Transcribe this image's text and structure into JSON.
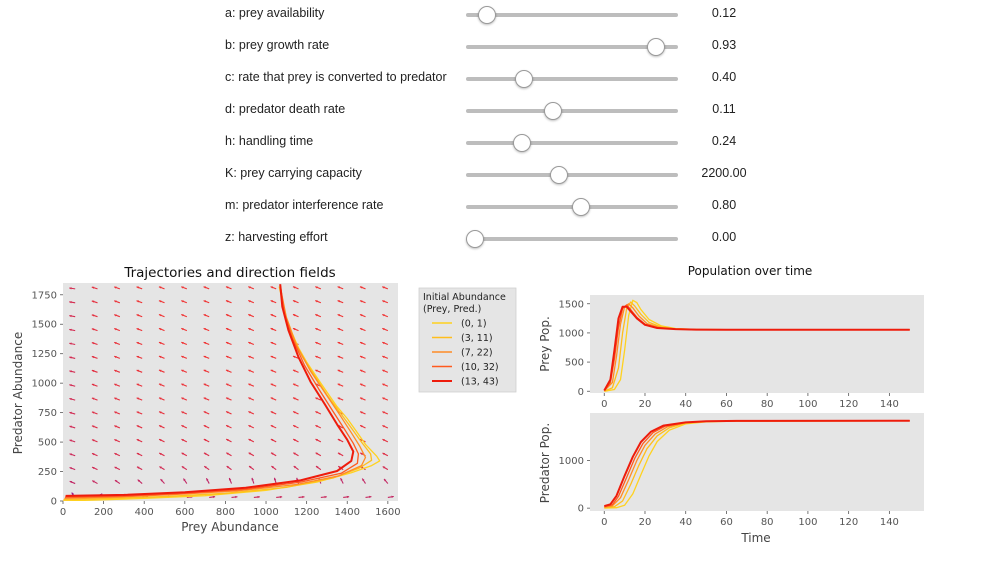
{
  "sliders": [
    {
      "label": "a: prey availability",
      "value": "0.12",
      "fraction": 0.06
    },
    {
      "label": "b: prey growth rate",
      "value": "0.93",
      "fraction": 0.925
    },
    {
      "label": "c: rate that prey is converted to predator",
      "value": "0.40",
      "fraction": 0.25
    },
    {
      "label": "d: predator death rate",
      "value": "0.11",
      "fraction": 0.4
    },
    {
      "label": "h: handling time",
      "value": "0.24",
      "fraction": 0.24
    },
    {
      "label": "K: prey carrying capacity",
      "value": "2200.00",
      "fraction": 0.43
    },
    {
      "label": "m: predator interference rate",
      "value": "0.80",
      "fraction": 0.54
    },
    {
      "label": "z: harvesting effort",
      "value": "0.00",
      "fraction": 0.0
    }
  ],
  "colors": {
    "plot_bg": "#e5e5e5",
    "slider_track": "#bdbdbd",
    "series": [
      "#ffd21f",
      "#ffbe1c",
      "#ff8c26",
      "#ff5a1e",
      "#ee1c0c"
    ]
  },
  "legend": {
    "title": "Initial Abundance\n (Prey, Pred.)",
    "entries": [
      "(0, 1)",
      "(3, 11)",
      "(7, 22)",
      "(10, 32)",
      "(13, 43)"
    ]
  },
  "chart_data": [
    {
      "type": "line",
      "title": "Trajectories and direction fields",
      "xlabel": "Prey Abundance",
      "ylabel": "Predator Abundance",
      "xlim": [
        0,
        1650
      ],
      "ylim": [
        0,
        1850
      ],
      "xticks": [
        "0",
        "200",
        "400",
        "600",
        "800",
        "1000",
        "1200",
        "1400",
        "1600"
      ],
      "yticks": [
        "0",
        "250",
        "500",
        "750",
        "1000",
        "1250",
        "1500",
        "1750"
      ],
      "grid": false,
      "legend_position": "outside-right",
      "direction_field": true,
      "series": [
        {
          "name": "(0, 1)",
          "points": [
            [
              0,
              1
            ],
            [
              150,
              8
            ],
            [
              400,
              22
            ],
            [
              700,
              45
            ],
            [
              1000,
              90
            ],
            [
              1250,
              160
            ],
            [
              1420,
              240
            ],
            [
              1520,
              300
            ],
            [
              1560,
              340
            ],
            [
              1545,
              380
            ],
            [
              1490,
              480
            ],
            [
              1450,
              580
            ],
            [
              1400,
              700
            ],
            [
              1350,
              800
            ],
            [
              1290,
              950
            ],
            [
              1250,
              1050
            ],
            [
              1200,
              1180
            ],
            [
              1160,
              1300
            ],
            [
              1130,
              1420
            ],
            [
              1100,
              1560
            ],
            [
              1080,
              1700
            ],
            [
              1065,
              1820
            ]
          ]
        },
        {
          "name": "(3, 11)",
          "points": [
            [
              3,
              11
            ],
            [
              200,
              20
            ],
            [
              500,
              38
            ],
            [
              800,
              65
            ],
            [
              1100,
              115
            ],
            [
              1330,
              195
            ],
            [
              1460,
              280
            ],
            [
              1520,
              345
            ],
            [
              1515,
              400
            ],
            [
              1470,
              500
            ],
            [
              1420,
              620
            ],
            [
              1360,
              760
            ],
            [
              1300,
              900
            ],
            [
              1240,
              1060
            ],
            [
              1180,
              1220
            ],
            [
              1130,
              1400
            ],
            [
              1090,
              1600
            ],
            [
              1068,
              1820
            ]
          ]
        },
        {
          "name": "(7, 22)",
          "points": [
            [
              7,
              22
            ],
            [
              250,
              32
            ],
            [
              550,
              55
            ],
            [
              850,
              85
            ],
            [
              1150,
              140
            ],
            [
              1360,
              215
            ],
            [
              1470,
              300
            ],
            [
              1490,
              370
            ],
            [
              1460,
              470
            ],
            [
              1420,
              580
            ],
            [
              1360,
              740
            ],
            [
              1290,
              920
            ],
            [
              1220,
              1100
            ],
            [
              1150,
              1320
            ],
            [
              1100,
              1560
            ],
            [
              1070,
              1820
            ]
          ]
        },
        {
          "name": "(10, 32)",
          "points": [
            [
              10,
              32
            ],
            [
              300,
              42
            ],
            [
              600,
              65
            ],
            [
              900,
              100
            ],
            [
              1170,
              160
            ],
            [
              1370,
              235
            ],
            [
              1450,
              320
            ],
            [
              1455,
              400
            ],
            [
              1430,
              490
            ],
            [
              1390,
              600
            ],
            [
              1330,
              760
            ],
            [
              1260,
              950
            ],
            [
              1190,
              1150
            ],
            [
              1130,
              1380
            ],
            [
              1090,
              1600
            ],
            [
              1072,
              1820
            ]
          ]
        },
        {
          "name": "(13, 43)",
          "points": [
            [
              13,
              43
            ],
            [
              300,
              52
            ],
            [
              600,
              75
            ],
            [
              900,
              112
            ],
            [
              1170,
              175
            ],
            [
              1350,
              255
            ],
            [
              1420,
              340
            ],
            [
              1430,
              420
            ],
            [
              1400,
              520
            ],
            [
              1350,
              650
            ],
            [
              1290,
              820
            ],
            [
              1220,
              1010
            ],
            [
              1160,
              1220
            ],
            [
              1110,
              1450
            ],
            [
              1080,
              1650
            ],
            [
              1070,
              1840
            ]
          ]
        }
      ]
    },
    {
      "type": "line",
      "title": "Population over time",
      "xlabel": "",
      "ylabel": "Prey Pop.",
      "xlim": [
        -7,
        157
      ],
      "ylim": [
        -30,
        1650
      ],
      "xticks": [
        "0",
        "20",
        "40",
        "60",
        "80",
        "100",
        "120",
        "140"
      ],
      "yticks": [
        "0",
        "500",
        "1000",
        "1500"
      ],
      "grid": false,
      "series": [
        {
          "name": "(0, 1)",
          "points": [
            [
              0,
              0
            ],
            [
              5,
              30
            ],
            [
              8,
              200
            ],
            [
              10,
              700
            ],
            [
              12,
              1300
            ],
            [
              14,
              1560
            ],
            [
              16,
              1520
            ],
            [
              18,
              1400
            ],
            [
              22,
              1230
            ],
            [
              28,
              1120
            ],
            [
              35,
              1075
            ],
            [
              45,
              1060
            ],
            [
              60,
              1055
            ],
            [
              150,
              1055
            ]
          ]
        },
        {
          "name": "(3, 11)",
          "points": [
            [
              0,
              3
            ],
            [
              4,
              60
            ],
            [
              7,
              400
            ],
            [
              9,
              1000
            ],
            [
              11,
              1420
            ],
            [
              13,
              1530
            ],
            [
              15,
              1460
            ],
            [
              18,
              1320
            ],
            [
              22,
              1180
            ],
            [
              28,
              1100
            ],
            [
              35,
              1070
            ],
            [
              45,
              1058
            ],
            [
              60,
              1055
            ],
            [
              150,
              1055
            ]
          ]
        },
        {
          "name": "(7, 22)",
          "points": [
            [
              0,
              7
            ],
            [
              4,
              150
            ],
            [
              6,
              600
            ],
            [
              8,
              1150
            ],
            [
              10,
              1450
            ],
            [
              12,
              1500
            ],
            [
              14,
              1430
            ],
            [
              17,
              1290
            ],
            [
              21,
              1160
            ],
            [
              27,
              1095
            ],
            [
              35,
              1068
            ],
            [
              45,
              1058
            ],
            [
              60,
              1055
            ],
            [
              150,
              1055
            ]
          ]
        },
        {
          "name": "(10, 32)",
          "points": [
            [
              0,
              10
            ],
            [
              3,
              150
            ],
            [
              5,
              550
            ],
            [
              7,
              1100
            ],
            [
              9,
              1420
            ],
            [
              11,
              1480
            ],
            [
              13,
              1400
            ],
            [
              16,
              1270
            ],
            [
              20,
              1150
            ],
            [
              26,
              1090
            ],
            [
              35,
              1066
            ],
            [
              45,
              1057
            ],
            [
              60,
              1055
            ],
            [
              150,
              1055
            ]
          ]
        },
        {
          "name": "(13, 43)",
          "points": [
            [
              0,
              13
            ],
            [
              3,
              200
            ],
            [
              5,
              700
            ],
            [
              7,
              1250
            ],
            [
              9,
              1450
            ],
            [
              11,
              1450
            ],
            [
              13,
              1370
            ],
            [
              16,
              1250
            ],
            [
              20,
              1140
            ],
            [
              26,
              1085
            ],
            [
              35,
              1065
            ],
            [
              45,
              1057
            ],
            [
              60,
              1055
            ],
            [
              150,
              1055
            ]
          ]
        }
      ]
    },
    {
      "type": "line",
      "title": "",
      "xlabel": "Time",
      "ylabel": "Predator Pop.",
      "xlim": [
        -7,
        157
      ],
      "ylim": [
        -60,
        2000
      ],
      "xticks": [
        "0",
        "20",
        "40",
        "60",
        "80",
        "100",
        "120",
        "140"
      ],
      "yticks": [
        "0",
        "1000"
      ],
      "grid": false,
      "series": [
        {
          "name": "(0, 1)",
          "points": [
            [
              0,
              1
            ],
            [
              6,
              10
            ],
            [
              10,
              60
            ],
            [
              14,
              300
            ],
            [
              18,
              700
            ],
            [
              22,
              1100
            ],
            [
              26,
              1400
            ],
            [
              32,
              1640
            ],
            [
              40,
              1770
            ],
            [
              50,
              1815
            ],
            [
              65,
              1830
            ],
            [
              150,
              1835
            ]
          ]
        },
        {
          "name": "(3, 11)",
          "points": [
            [
              0,
              11
            ],
            [
              5,
              30
            ],
            [
              9,
              150
            ],
            [
              13,
              500
            ],
            [
              17,
              900
            ],
            [
              21,
              1250
            ],
            [
              26,
              1520
            ],
            [
              32,
              1690
            ],
            [
              40,
              1790
            ],
            [
              50,
              1820
            ],
            [
              65,
              1832
            ],
            [
              150,
              1835
            ]
          ]
        },
        {
          "name": "(7, 22)",
          "points": [
            [
              0,
              22
            ],
            [
              4,
              50
            ],
            [
              8,
              220
            ],
            [
              12,
              600
            ],
            [
              16,
              1000
            ],
            [
              20,
              1320
            ],
            [
              25,
              1560
            ],
            [
              31,
              1710
            ],
            [
              40,
              1795
            ],
            [
              50,
              1822
            ],
            [
              65,
              1832
            ],
            [
              150,
              1835
            ]
          ]
        },
        {
          "name": "(10, 32)",
          "points": [
            [
              0,
              32
            ],
            [
              4,
              70
            ],
            [
              7,
              250
            ],
            [
              11,
              650
            ],
            [
              15,
              1050
            ],
            [
              19,
              1360
            ],
            [
              24,
              1590
            ],
            [
              30,
              1725
            ],
            [
              40,
              1800
            ],
            [
              50,
              1824
            ],
            [
              65,
              1833
            ],
            [
              150,
              1835
            ]
          ]
        },
        {
          "name": "(13, 43)",
          "points": [
            [
              0,
              43
            ],
            [
              3,
              80
            ],
            [
              6,
              260
            ],
            [
              10,
              680
            ],
            [
              14,
              1080
            ],
            [
              18,
              1390
            ],
            [
              23,
              1610
            ],
            [
              29,
              1735
            ],
            [
              40,
              1802
            ],
            [
              50,
              1825
            ],
            [
              65,
              1833
            ],
            [
              150,
              1835
            ]
          ]
        }
      ]
    }
  ]
}
